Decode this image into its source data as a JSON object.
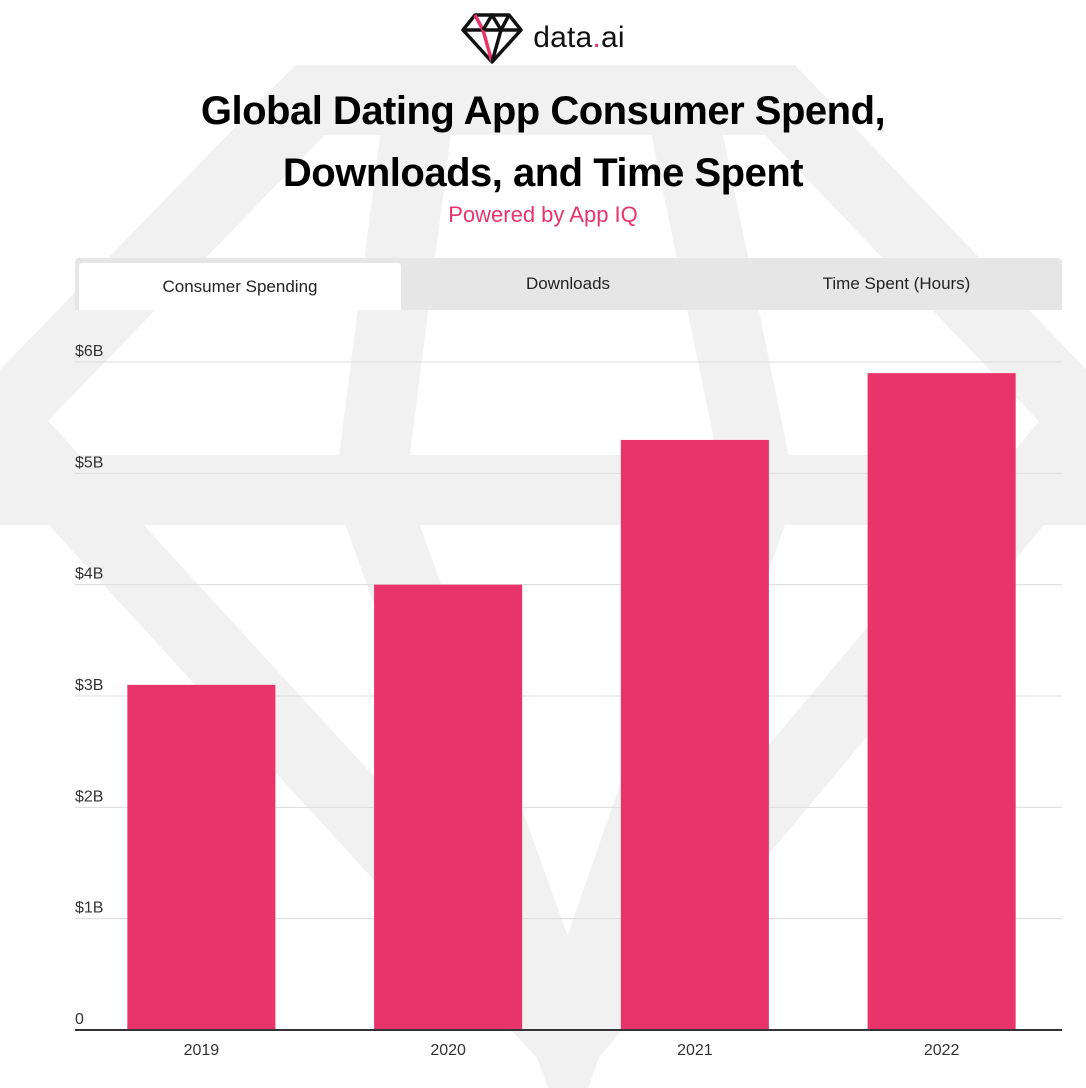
{
  "brand": {
    "name_main": "data",
    "name_dot": ".",
    "name_suffix": "ai",
    "accent_color": "#e9346b",
    "logo_icon": "diamond-icon"
  },
  "header": {
    "title_line1": "Global Dating App Consumer Spend,",
    "title_line2": "Downloads, and Time Spent",
    "subtitle": "Powered by App IQ"
  },
  "tabs": [
    {
      "label": "Consumer Spending",
      "active": true
    },
    {
      "label": "Downloads",
      "active": false
    },
    {
      "label": "Time Spent (Hours)",
      "active": false
    }
  ],
  "chart_data": {
    "type": "bar",
    "title": "",
    "xlabel": "",
    "ylabel": "",
    "categories": [
      "2019",
      "2020",
      "2021",
      "2022"
    ],
    "values": [
      3.1,
      4.0,
      5.3,
      5.9
    ],
    "value_unit": "billions USD",
    "ylim": [
      0,
      6
    ],
    "yticks": [
      0,
      1,
      2,
      3,
      4,
      5,
      6
    ],
    "ytick_labels": [
      "0",
      "$1B",
      "$2B",
      "$3B",
      "$4B",
      "$5B",
      "$6B"
    ],
    "grid": true,
    "legend": "none",
    "bar_color": "#e9346b"
  }
}
